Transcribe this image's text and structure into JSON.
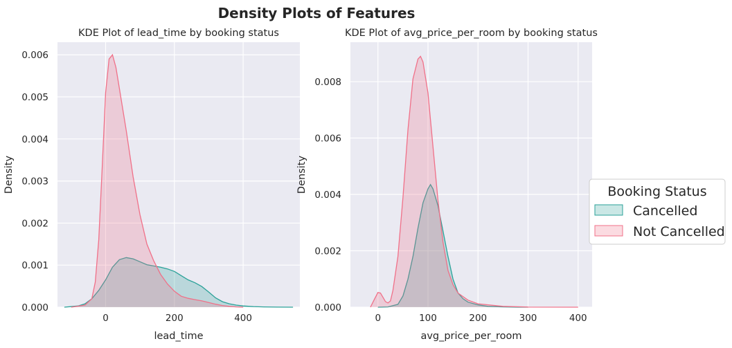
{
  "figure": {
    "title": "Density Plots of Features"
  },
  "legend": {
    "title": "Booking Status",
    "placement": "center-right",
    "entries": [
      "Cancelled",
      "Not Cancelled"
    ]
  },
  "colors": {
    "cancelled": "#2aa198",
    "cancelled_fill": "rgba(42,161,152,0.25)",
    "not_cancelled": "#f07088",
    "not_cancelled_fill": "rgba(240,112,136,0.25)",
    "axes_bg": "#eaeaf2",
    "grid": "#ffffff"
  },
  "chart_data": [
    {
      "type": "area",
      "title": "KDE Plot of lead_time by booking status",
      "xlabel": "lead_time",
      "ylabel": "Density",
      "xlim": [
        -140,
        565
      ],
      "ylim": [
        0,
        0.0063
      ],
      "xticks": [
        0,
        200,
        400
      ],
      "yticks": [
        0.0,
        0.001,
        0.002,
        0.003,
        0.004,
        0.005,
        0.006
      ],
      "ytick_labels": [
        "0.000",
        "0.001",
        "0.002",
        "0.003",
        "0.004",
        "0.005",
        "0.006"
      ],
      "grid": true,
      "series": [
        {
          "name": "Cancelled",
          "x": [
            -120,
            -80,
            -60,
            -40,
            -20,
            0,
            20,
            40,
            60,
            80,
            100,
            120,
            140,
            160,
            180,
            200,
            220,
            240,
            260,
            280,
            300,
            320,
            340,
            360,
            380,
            400,
            430,
            460,
            500,
            545
          ],
          "y": [
            0.0,
            3e-05,
            8e-05,
            0.0002,
            0.0004,
            0.00065,
            0.00095,
            0.00113,
            0.00118,
            0.00115,
            0.00108,
            0.00101,
            0.00098,
            0.00095,
            0.00091,
            0.00085,
            0.00075,
            0.00065,
            0.00058,
            0.00049,
            0.00036,
            0.00022,
            0.00013,
            8e-05,
            5e-05,
            3e-05,
            1.5e-05,
            7e-06,
            2e-06,
            0.0
          ]
        },
        {
          "name": "Not Cancelled",
          "x": [
            -100,
            -60,
            -40,
            -30,
            -20,
            -10,
            0,
            10,
            20,
            30,
            40,
            60,
            80,
            100,
            120,
            140,
            160,
            180,
            200,
            220,
            240,
            260,
            280,
            300,
            320,
            340,
            360,
            380,
            400
          ],
          "y": [
            0.0,
            5e-05,
            0.0002,
            0.0006,
            0.0016,
            0.0033,
            0.0051,
            0.0059,
            0.006,
            0.0057,
            0.0052,
            0.0042,
            0.0031,
            0.0022,
            0.0015,
            0.0011,
            0.00078,
            0.00055,
            0.00038,
            0.00026,
            0.00021,
            0.00018,
            0.00015,
            0.00011,
            7e-05,
            4e-05,
            2e-05,
            7e-06,
            0.0
          ]
        }
      ]
    },
    {
      "type": "area",
      "title": "KDE Plot of avg_price_per_room by booking status",
      "xlabel": "avg_price_per_room",
      "ylabel": "Density",
      "xlim": [
        -55,
        428
      ],
      "ylim": [
        0,
        0.0094
      ],
      "xticks": [
        0,
        100,
        200,
        300,
        400
      ],
      "yticks": [
        0.0,
        0.002,
        0.004,
        0.006,
        0.008
      ],
      "ytick_labels": [
        "0.000",
        "0.002",
        "0.004",
        "0.006",
        "0.008"
      ],
      "grid": true,
      "series": [
        {
          "name": "Cancelled",
          "x": [
            0,
            20,
            40,
            50,
            60,
            70,
            80,
            90,
            100,
            105,
            110,
            120,
            130,
            140,
            150,
            160,
            170,
            180,
            200,
            220,
            250,
            280,
            300
          ],
          "y": [
            0.0,
            1e-05,
            0.0001,
            0.0004,
            0.001,
            0.0018,
            0.0028,
            0.0037,
            0.0042,
            0.00435,
            0.0042,
            0.0036,
            0.0027,
            0.0018,
            0.001,
            0.0005,
            0.0003,
            0.00018,
            8e-05,
            3e-05,
            1e-05,
            0.0,
            0.0
          ]
        },
        {
          "name": "Not Cancelled",
          "x": [
            -15,
            -8,
            0,
            5,
            10,
            15,
            20,
            25,
            30,
            40,
            50,
            60,
            70,
            80,
            85,
            90,
            100,
            110,
            120,
            130,
            140,
            150,
            160,
            180,
            200,
            250,
            300,
            400
          ],
          "y": [
            0.0,
            0.00025,
            0.00052,
            0.0005,
            0.00035,
            0.0002,
            0.00015,
            0.00022,
            0.0006,
            0.0018,
            0.0039,
            0.0063,
            0.0081,
            0.0088,
            0.0089,
            0.0087,
            0.0076,
            0.0057,
            0.0038,
            0.0023,
            0.0013,
            0.0008,
            0.0005,
            0.00025,
            0.00012,
            3e-05,
            5e-06,
            0.0
          ]
        }
      ]
    }
  ]
}
